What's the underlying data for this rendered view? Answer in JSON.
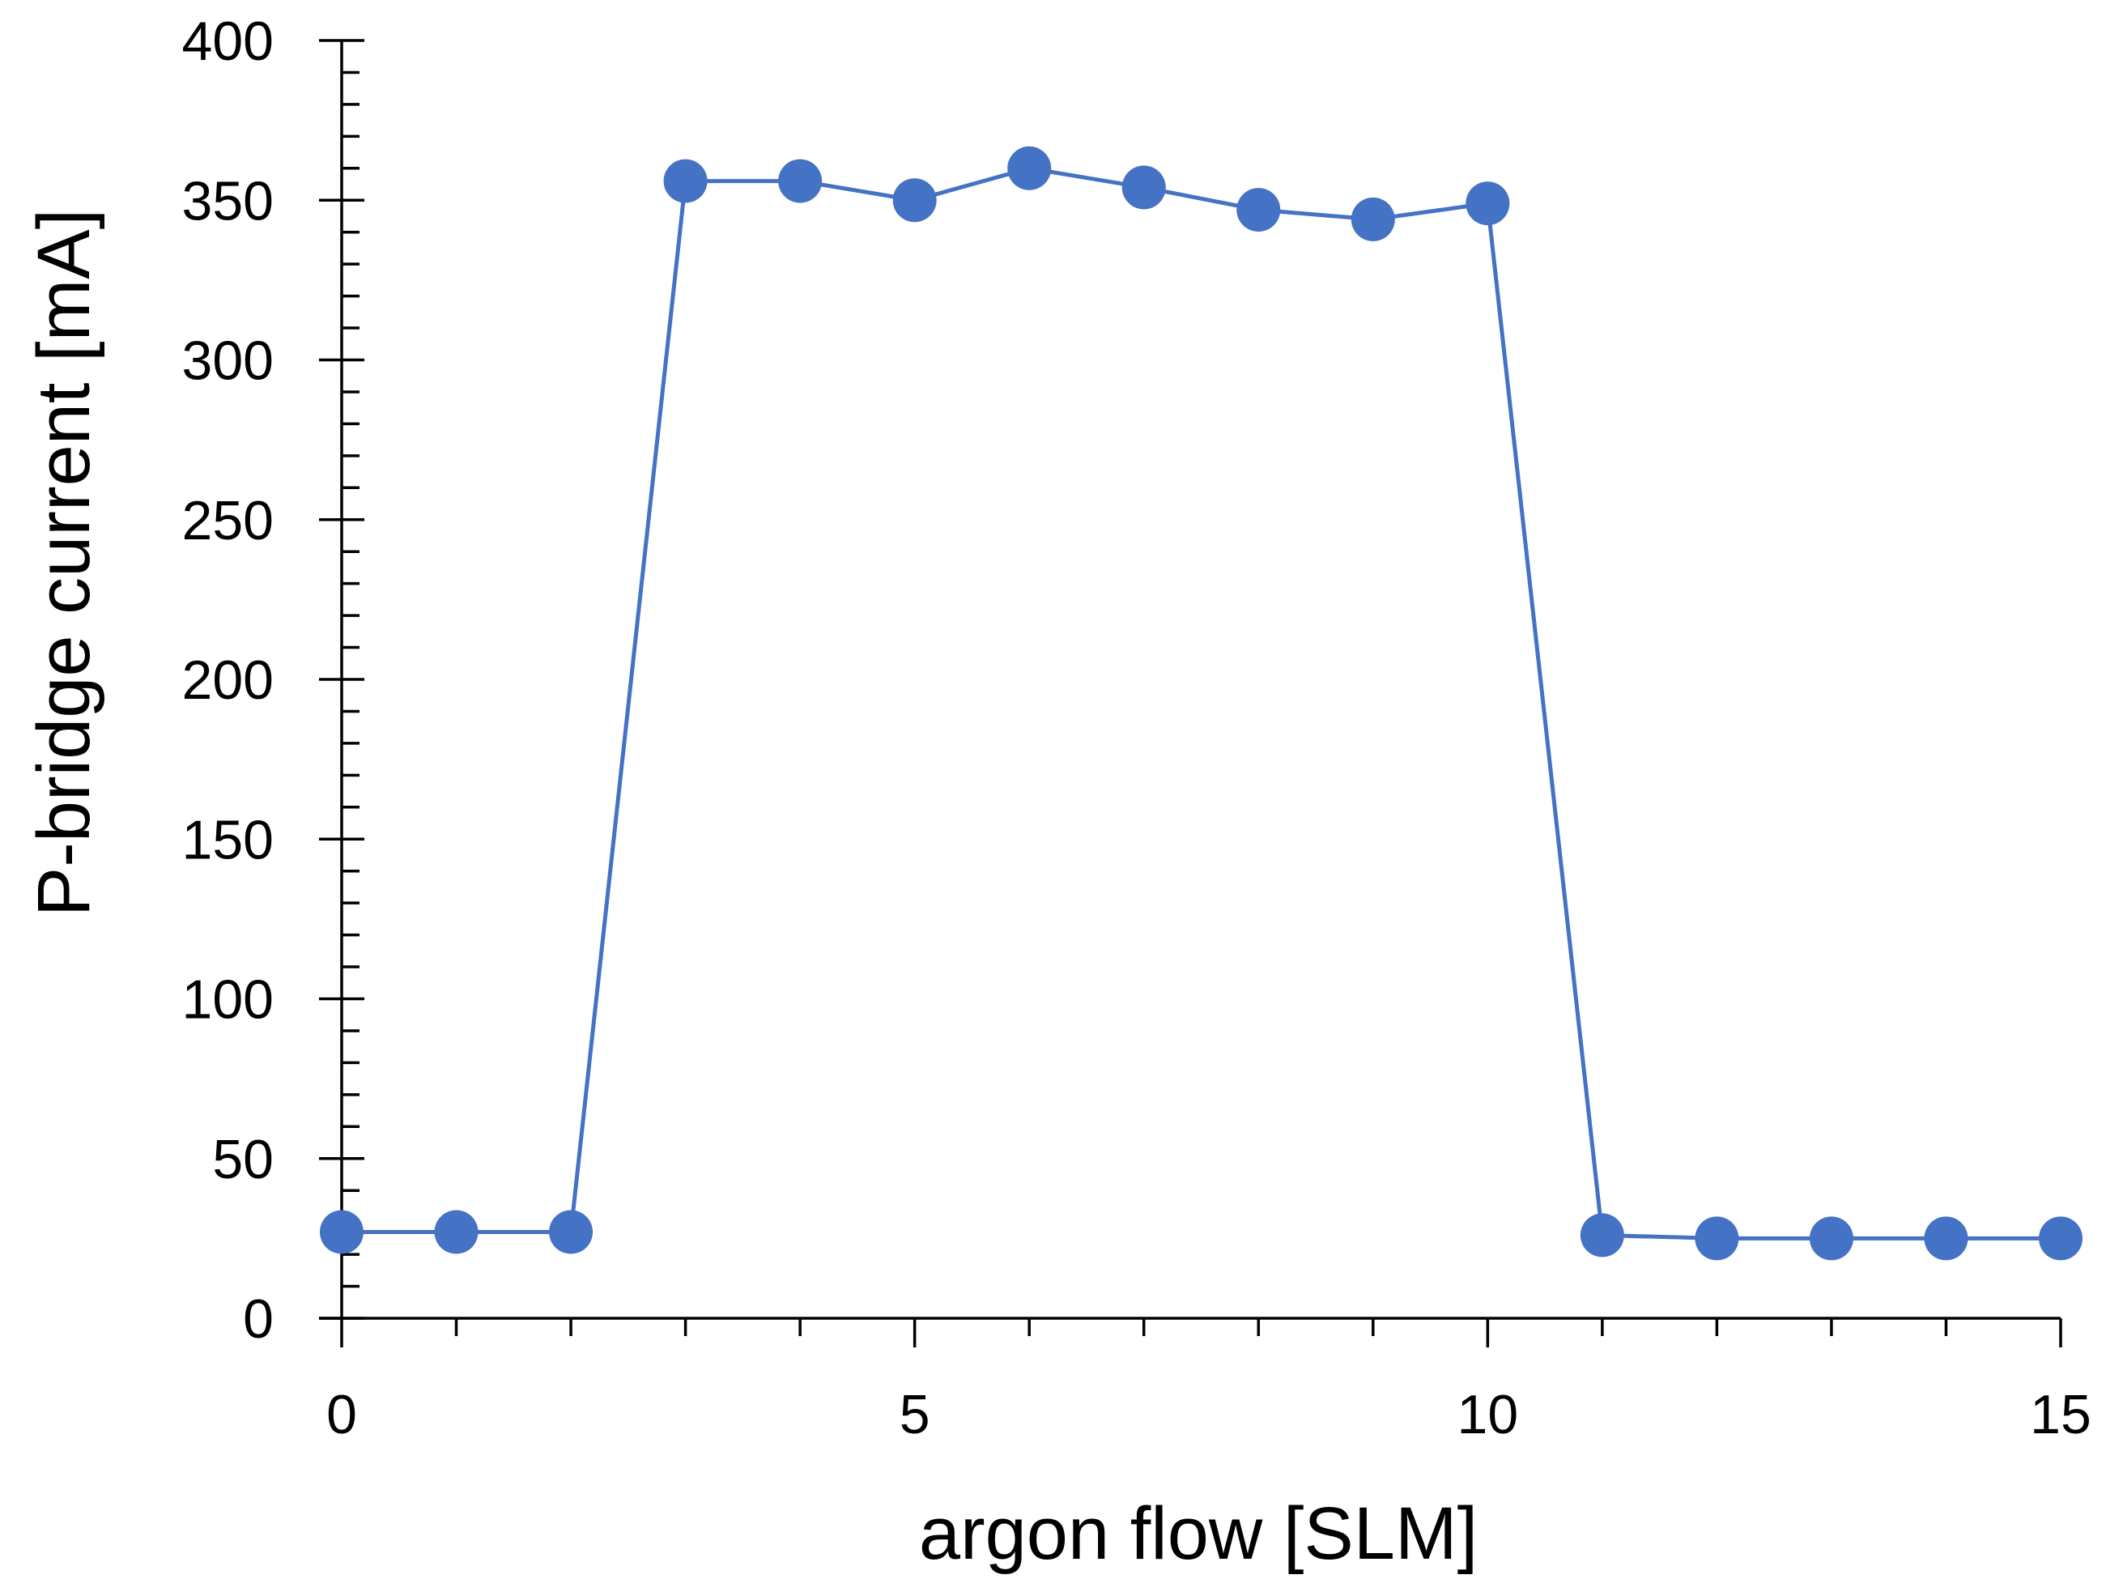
{
  "chart_data": {
    "type": "line",
    "title": "",
    "xlabel": "argon flow [SLM]",
    "ylabel": "P-bridge current [mA]",
    "xlim": [
      0,
      15
    ],
    "ylim": [
      0,
      400
    ],
    "xticks": [
      0,
      5,
      10,
      15
    ],
    "yticks": [
      0,
      50,
      100,
      150,
      200,
      250,
      300,
      350,
      400
    ],
    "x_minor_step": 1,
    "y_minor_step": 10,
    "grid": false,
    "legend": "none",
    "series": [
      {
        "color": "#4472C4",
        "marker": "circle",
        "x": [
          0,
          1,
          2,
          3,
          4,
          5,
          6,
          7,
          8,
          9,
          10,
          11,
          12,
          13,
          14,
          15
        ],
        "y": [
          27,
          27,
          27,
          356,
          356,
          350,
          360,
          354,
          347,
          344,
          349,
          26,
          25,
          25,
          25,
          25
        ]
      }
    ]
  }
}
